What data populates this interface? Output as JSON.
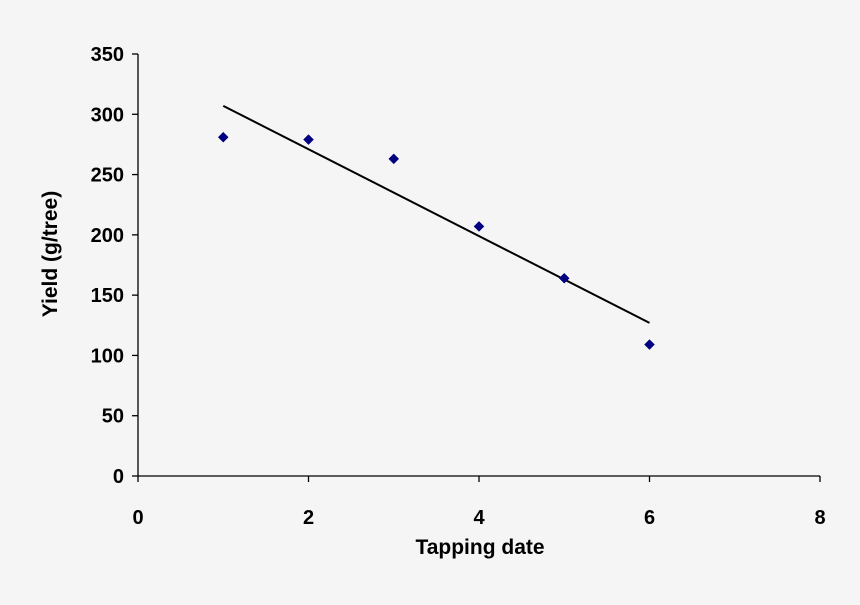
{
  "chart_data": {
    "type": "scatter",
    "title": "",
    "xlabel": "Tapping date",
    "ylabel": "Yield (g/tree)",
    "xlim": [
      0,
      8
    ],
    "ylim": [
      0,
      350
    ],
    "x_ticks": [
      0,
      2,
      4,
      6,
      8
    ],
    "y_ticks": [
      0,
      50,
      100,
      150,
      200,
      250,
      300,
      350
    ],
    "grid": false,
    "legend": "none",
    "series": [
      {
        "points": [
          {
            "x": 1,
            "y": 281
          },
          {
            "x": 2,
            "y": 279
          },
          {
            "x": 3,
            "y": 263
          },
          {
            "x": 4,
            "y": 207
          },
          {
            "x": 5,
            "y": 164
          },
          {
            "x": 6,
            "y": 109
          }
        ],
        "marker": "diamond",
        "color": "#000080"
      }
    ],
    "trendline": {
      "type": "linear",
      "from": {
        "x": 1,
        "y": 307
      },
      "to": {
        "x": 6,
        "y": 127
      },
      "color": "#000000"
    }
  }
}
